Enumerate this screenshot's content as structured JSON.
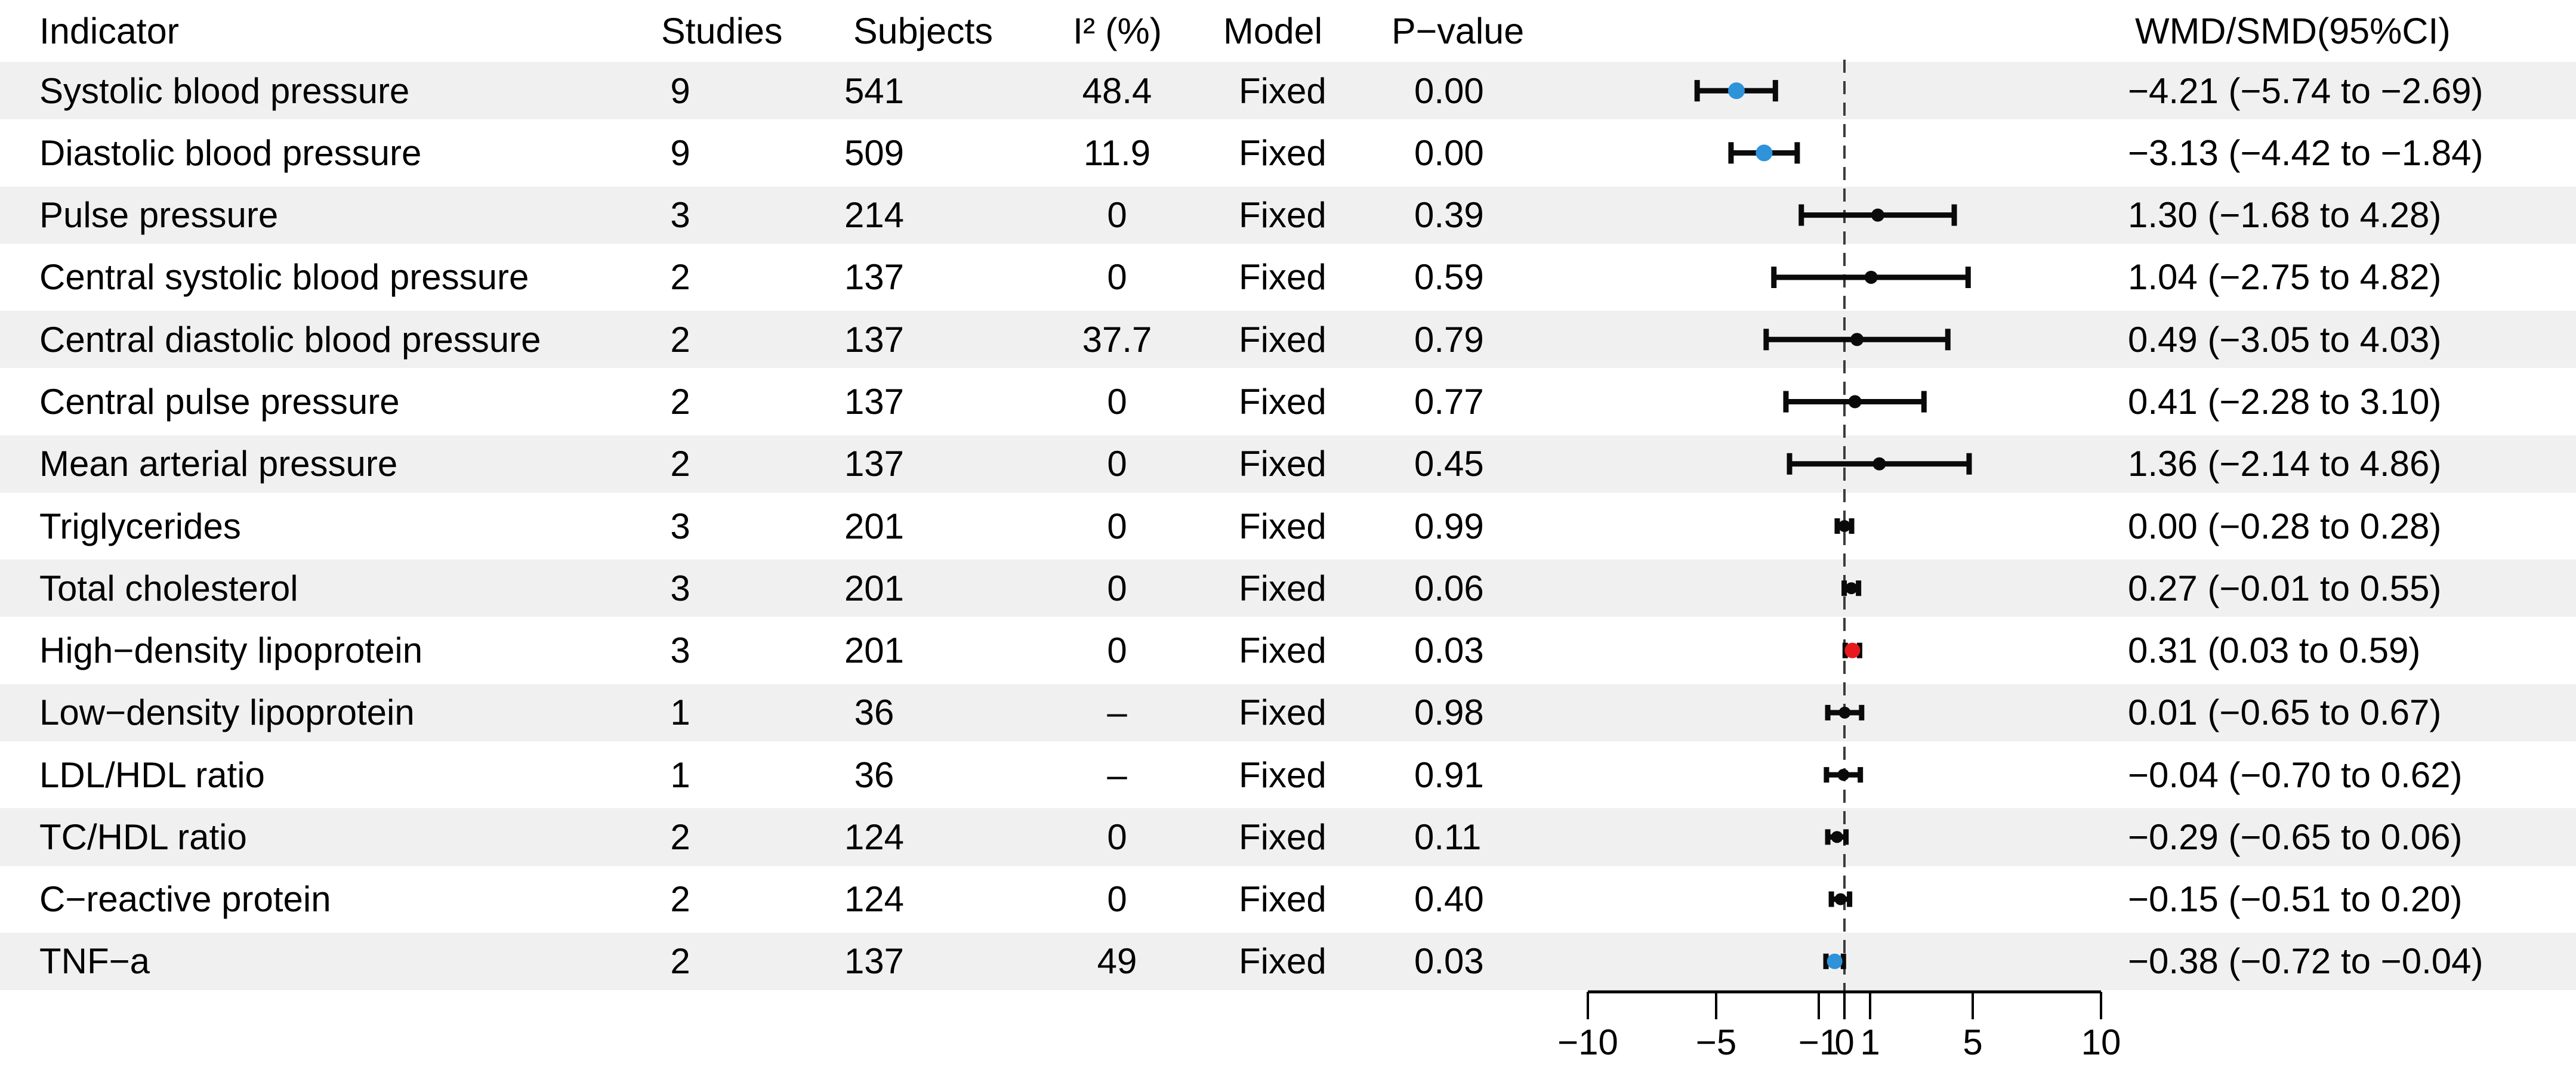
{
  "header": {
    "indicator": "Indicator",
    "studies": "Studies",
    "subjects": "Subjects",
    "i2": "I² (%)",
    "model": "Model",
    "pvalue": "P−value",
    "wmd": "WMD/SMD(95%CI)"
  },
  "colors": {
    "stripe": "#f0f0f0",
    "black": "#0a0a0a",
    "blue": "#2e93d9",
    "red": "#e8191d",
    "dash_line": "#3c3c3c",
    "axis": "#000000"
  },
  "chart_data": {
    "type": "forest",
    "null_line": 0,
    "xlim": [
      -10,
      10
    ],
    "axis": {
      "ticks": [
        -10,
        -5,
        -1,
        0,
        1,
        5,
        10
      ],
      "labels": [
        "−10",
        "−5",
        "−1",
        "0",
        "1",
        "5",
        "10"
      ]
    },
    "rows": [
      {
        "indicator": "Systolic blood pressure",
        "studies": "9",
        "subjects": "541",
        "i2": "48.4",
        "model": "Fixed",
        "pvalue": "0.00",
        "est": -4.21,
        "lo": -5.74,
        "hi": -2.69,
        "color": "blue",
        "ci": "−4.21 (−5.74 to −2.69)"
      },
      {
        "indicator": "Diastolic blood pressure",
        "studies": "9",
        "subjects": "509",
        "i2": "11.9",
        "model": "Fixed",
        "pvalue": "0.00",
        "est": -3.13,
        "lo": -4.42,
        "hi": -1.84,
        "color": "blue",
        "ci": "−3.13 (−4.42 to −1.84)"
      },
      {
        "indicator": "Pulse pressure",
        "studies": "3",
        "subjects": "214",
        "i2": "0",
        "model": "Fixed",
        "pvalue": "0.39",
        "est": 1.3,
        "lo": -1.68,
        "hi": 4.28,
        "color": "black",
        "ci": "1.30 (−1.68 to 4.28)"
      },
      {
        "indicator": "Central systolic blood pressure",
        "studies": "2",
        "subjects": "137",
        "i2": "0",
        "model": "Fixed",
        "pvalue": "0.59",
        "est": 1.04,
        "lo": -2.75,
        "hi": 4.82,
        "color": "black",
        "ci": "1.04 (−2.75 to 4.82)"
      },
      {
        "indicator": "Central diastolic blood pressure",
        "studies": "2",
        "subjects": "137",
        "i2": "37.7",
        "model": "Fixed",
        "pvalue": "0.79",
        "est": 0.49,
        "lo": -3.05,
        "hi": 4.03,
        "color": "black",
        "ci": "0.49 (−3.05 to 4.03)"
      },
      {
        "indicator": "Central pulse pressure",
        "studies": "2",
        "subjects": "137",
        "i2": "0",
        "model": "Fixed",
        "pvalue": "0.77",
        "est": 0.41,
        "lo": -2.28,
        "hi": 3.1,
        "color": "black",
        "ci": "0.41 (−2.28 to 3.10)"
      },
      {
        "indicator": "Mean arterial pressure",
        "studies": "2",
        "subjects": "137",
        "i2": "0",
        "model": "Fixed",
        "pvalue": "0.45",
        "est": 1.36,
        "lo": -2.14,
        "hi": 4.86,
        "color": "black",
        "ci": "1.36 (−2.14 to 4.86)"
      },
      {
        "indicator": "Triglycerides",
        "studies": "3",
        "subjects": "201",
        "i2": "0",
        "model": "Fixed",
        "pvalue": "0.99",
        "est": 0.0,
        "lo": -0.28,
        "hi": 0.28,
        "color": "black",
        "ci": "0.00 (−0.28 to 0.28)"
      },
      {
        "indicator": "Total cholesterol",
        "studies": "3",
        "subjects": "201",
        "i2": "0",
        "model": "Fixed",
        "pvalue": "0.06",
        "est": 0.27,
        "lo": -0.01,
        "hi": 0.55,
        "color": "black",
        "ci": "0.27 (−0.01 to 0.55)"
      },
      {
        "indicator": "High−density lipoprotein",
        "studies": "3",
        "subjects": "201",
        "i2": "0",
        "model": "Fixed",
        "pvalue": "0.03",
        "est": 0.31,
        "lo": 0.03,
        "hi": 0.59,
        "color": "red",
        "ci": "0.31 (0.03 to 0.59)"
      },
      {
        "indicator": "Low−density lipoprotein",
        "studies": "1",
        "subjects": "36",
        "i2": "–",
        "model": "Fixed",
        "pvalue": "0.98",
        "est": 0.01,
        "lo": -0.65,
        "hi": 0.67,
        "color": "black",
        "ci": "0.01 (−0.65 to 0.67)"
      },
      {
        "indicator": "LDL/HDL ratio",
        "studies": "1",
        "subjects": "36",
        "i2": "–",
        "model": "Fixed",
        "pvalue": "0.91",
        "est": -0.04,
        "lo": -0.7,
        "hi": 0.62,
        "color": "black",
        "ci": "−0.04 (−0.70 to 0.62)"
      },
      {
        "indicator": "TC/HDL ratio",
        "studies": "2",
        "subjects": "124",
        "i2": "0",
        "model": "Fixed",
        "pvalue": "0.11",
        "est": -0.29,
        "lo": -0.65,
        "hi": 0.06,
        "color": "black",
        "ci": "−0.29 (−0.65 to 0.06)"
      },
      {
        "indicator": "C−reactive protein",
        "studies": "2",
        "subjects": "124",
        "i2": "0",
        "model": "Fixed",
        "pvalue": "0.40",
        "est": -0.15,
        "lo": -0.51,
        "hi": 0.2,
        "color": "black",
        "ci": "−0.15 (−0.51 to 0.20)"
      },
      {
        "indicator": "TNF−a",
        "studies": "2",
        "subjects": "137",
        "i2": "49",
        "model": "Fixed",
        "pvalue": "0.03",
        "est": -0.38,
        "lo": -0.72,
        "hi": -0.04,
        "color": "blue",
        "ci": "−0.38 (−0.72 to −0.04)"
      }
    ]
  }
}
